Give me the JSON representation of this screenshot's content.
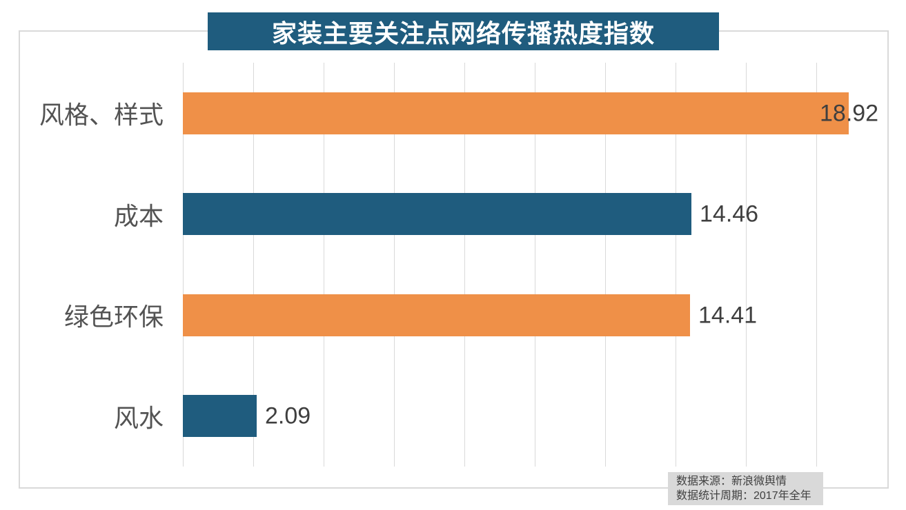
{
  "title": "家装主要关注点网络传播热度指数",
  "source_note": {
    "line1": "数据来源：新浪微舆情",
    "line2": "数据统计周期：2017年全年"
  },
  "colors": {
    "teal": "#1f5c7e",
    "orange": "#ef9048",
    "grid": "#d9d9d9",
    "frame": "#d9d9d9",
    "title_text": "#ffffff",
    "value_text": "#3f3f3f",
    "category_text": "#535353",
    "note_bg": "#d9d9d9",
    "note_text": "#404040"
  },
  "chart_data": {
    "type": "bar",
    "orientation": "horizontal",
    "title": "家装主要关注点网络传播热度指数",
    "categories": [
      "风格、样式",
      "成本",
      "绿色环保",
      "风水"
    ],
    "values": [
      18.92,
      14.46,
      14.41,
      2.09
    ],
    "value_labels": [
      "18.92",
      "14.46",
      "14.41",
      "2.09"
    ],
    "bar_colors": [
      "orange",
      "teal",
      "orange",
      "teal"
    ],
    "xlim": [
      0,
      20
    ],
    "gridline_step": 2,
    "grid": true,
    "axis_tick_labels_visible": false,
    "legend": "none"
  }
}
